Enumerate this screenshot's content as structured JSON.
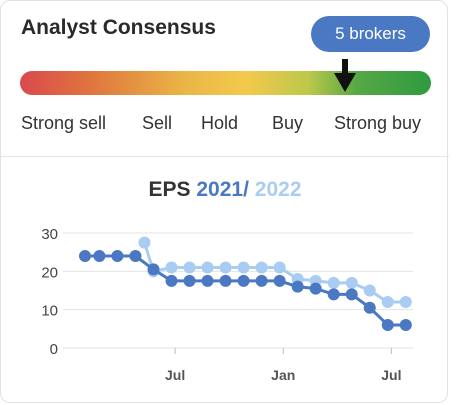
{
  "consensus": {
    "title": "Analyst Consensus",
    "brokers_label": "5 brokers",
    "scale_labels": [
      "Strong sell",
      "Sell",
      "Hold",
      "Buy",
      "Strong buy"
    ],
    "rating_position": 0.79
  },
  "eps": {
    "title_prefix": "EPS",
    "year_primary": "2021",
    "separator": "/",
    "year_secondary": "2022"
  },
  "colors": {
    "series_2021": "#4a78c2",
    "series_2022": "#a9cdf2"
  },
  "chart_data": {
    "type": "line",
    "y_ticks": [
      0,
      10,
      20,
      30
    ],
    "ylim": [
      0,
      30
    ],
    "x_ticks": [
      {
        "label": "Jul",
        "x": 5
      },
      {
        "label": "Jan",
        "x": 11
      },
      {
        "label": "Jul",
        "x": 17
      }
    ],
    "xlim": [
      0,
      18.2
    ],
    "grid": true,
    "series": [
      {
        "name": "2021",
        "points": [
          [
            0,
            24
          ],
          [
            0.8,
            24
          ],
          [
            1.8,
            24
          ],
          [
            2.8,
            24
          ],
          [
            3.8,
            20.5
          ],
          [
            4.8,
            17.5
          ],
          [
            5.8,
            17.5
          ],
          [
            6.8,
            17.5
          ],
          [
            7.8,
            17.5
          ],
          [
            8.8,
            17.5
          ],
          [
            9.8,
            17.5
          ],
          [
            10.8,
            17.5
          ],
          [
            11.8,
            16
          ],
          [
            12.8,
            15.5
          ],
          [
            13.8,
            14
          ],
          [
            14.8,
            14
          ],
          [
            15.8,
            10.5
          ],
          [
            16.8,
            6
          ],
          [
            17.8,
            6
          ]
        ]
      },
      {
        "name": "2022",
        "points": [
          [
            3.3,
            27.5
          ],
          [
            3.8,
            20
          ],
          [
            4.8,
            21
          ],
          [
            5.8,
            21
          ],
          [
            6.8,
            21
          ],
          [
            7.8,
            21
          ],
          [
            8.8,
            21
          ],
          [
            9.8,
            21
          ],
          [
            10.8,
            21
          ],
          [
            11.8,
            18
          ],
          [
            12.8,
            17.5
          ],
          [
            13.8,
            17
          ],
          [
            14.8,
            17
          ],
          [
            15.8,
            15
          ],
          [
            16.8,
            12
          ],
          [
            17.8,
            12
          ]
        ]
      }
    ]
  }
}
